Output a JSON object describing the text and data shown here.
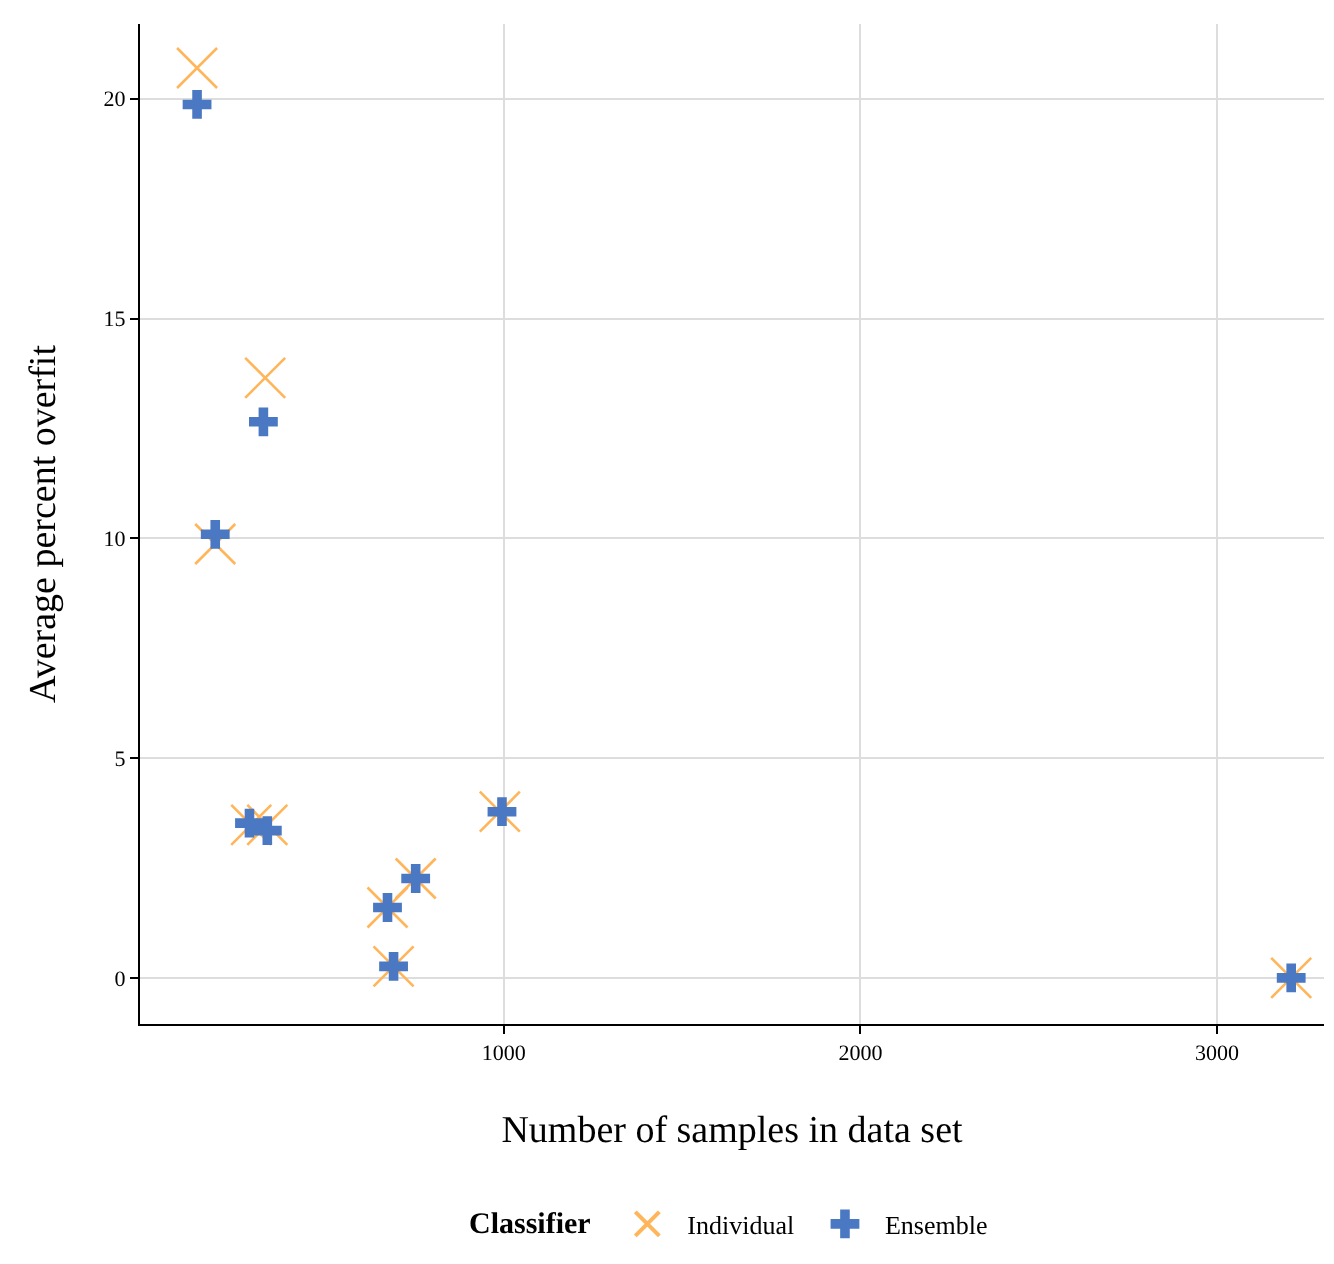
{
  "chart_data": {
    "type": "scatter",
    "xlabel": "Number of samples in data set",
    "ylabel": "Average percent overfit",
    "legend_title": "Classifier",
    "legend": "bottom",
    "grid": true,
    "xlim": [
      -20,
      3300
    ],
    "xticks": [
      1000,
      2000,
      3000
    ],
    "ylim": [
      -1.05,
      21.7
    ],
    "yticks": [
      0,
      5,
      10,
      15,
      20
    ],
    "series": [
      {
        "name": "Individual",
        "color": "#ffb55a",
        "marker": "x",
        "x": [
          140,
          331,
          191,
          292,
          337,
          989,
          753,
          674,
          691,
          3208
        ],
        "values": [
          20.7,
          13.65,
          9.87,
          3.48,
          3.48,
          3.78,
          2.26,
          1.6,
          0.26,
          0.0
        ]
      },
      {
        "name": "Ensemble",
        "color": "#4a78c2",
        "marker": "cross",
        "x": [
          140,
          326,
          191,
          287,
          337,
          995,
          753,
          674,
          691,
          3208
        ],
        "values": [
          19.87,
          12.65,
          10.09,
          3.52,
          3.35,
          3.78,
          2.26,
          1.6,
          0.26,
          0.0
        ]
      }
    ]
  }
}
